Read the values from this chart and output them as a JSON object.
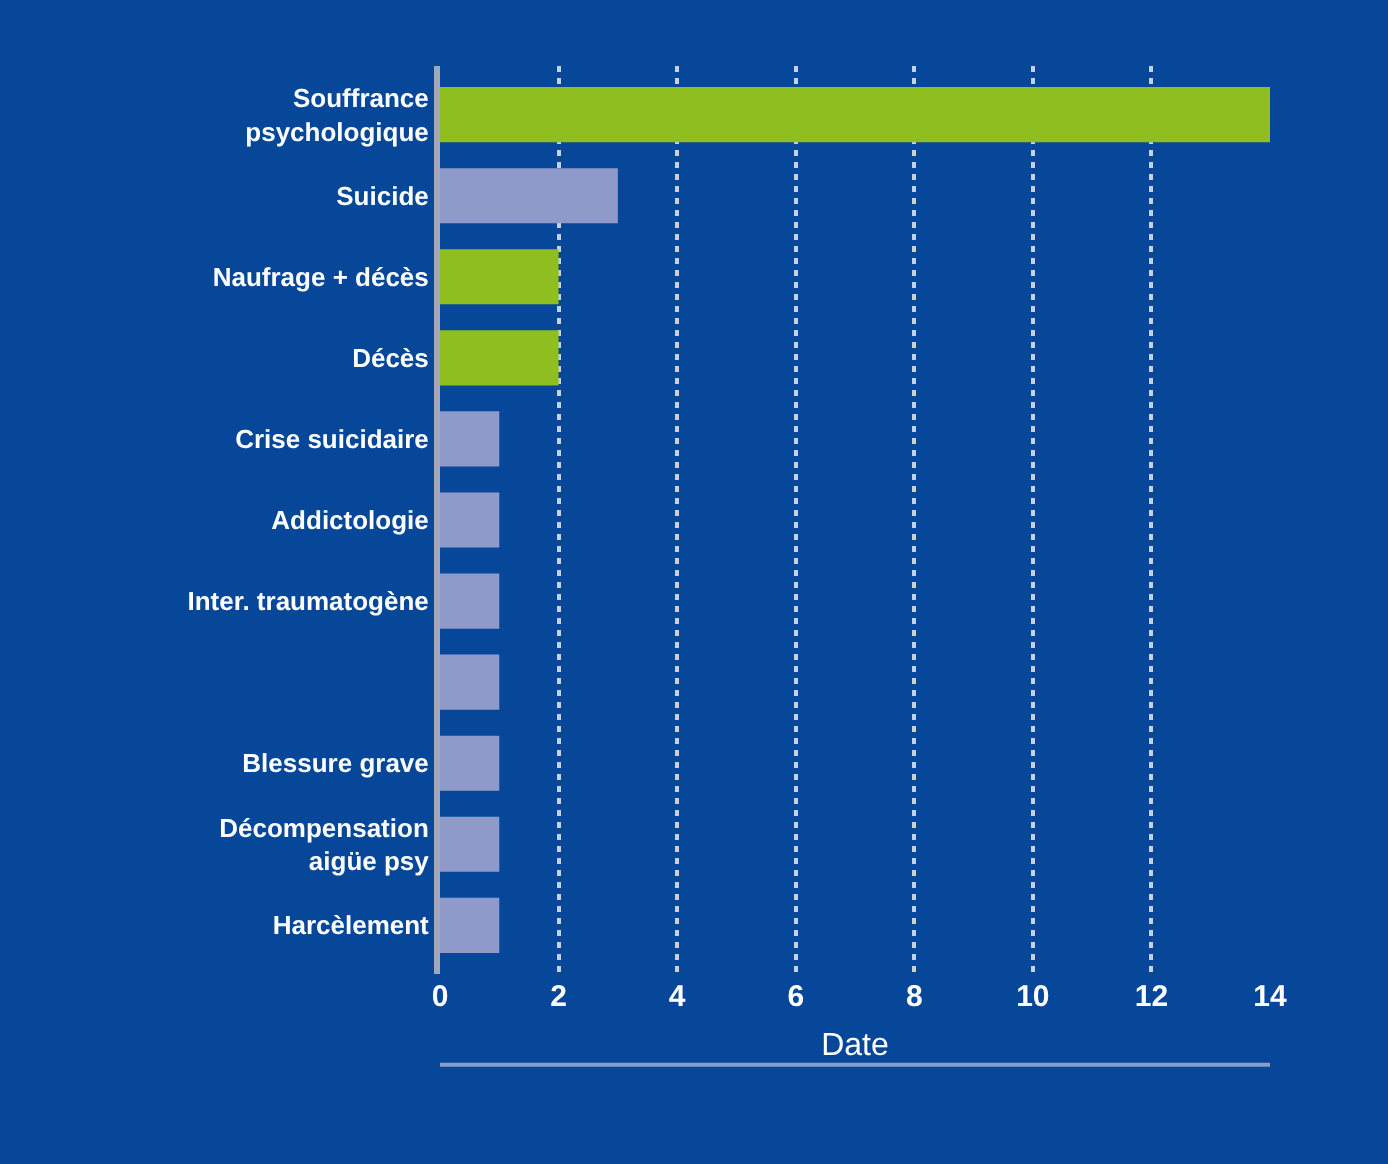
{
  "chart_data": {
    "type": "bar",
    "orientation": "horizontal",
    "xlabel": "Date",
    "categories": [
      "Souffrance\npsychologique",
      "Suicide",
      "Naufrage + décès",
      "Décès",
      "Crise suicidaire",
      "Addictologie",
      "Inter. traumatogène",
      null,
      "Blessure grave",
      "Décompensation\naigüe psy",
      "Harcèlement"
    ],
    "values": [
      14,
      3,
      2,
      2,
      1,
      1,
      1,
      1,
      1,
      1,
      1
    ],
    "colors": [
      "#8fbe20",
      "#8f9acb",
      "#8fbe20",
      "#8fbe20",
      "#8f9acb",
      "#8f9acb",
      "#8f9acb",
      "#8f9acb",
      "#8f9acb",
      "#8f9acb",
      "#8f9acb"
    ],
    "xlim": [
      0,
      14
    ],
    "xticks": [
      0,
      2,
      4,
      6,
      8,
      10,
      12,
      14
    ],
    "grid": "x"
  }
}
